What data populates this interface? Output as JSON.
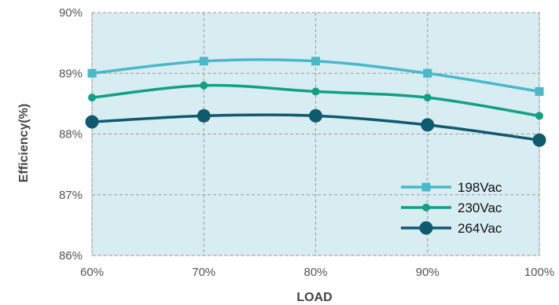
{
  "chart_data": {
    "type": "line",
    "title": "",
    "xlabel": "LOAD",
    "ylabel": "Efficiency(%)",
    "categories": [
      "60%",
      "70%",
      "80%",
      "90%",
      "100%"
    ],
    "x": [
      60,
      70,
      80,
      90,
      100
    ],
    "y_ticks": [
      "86%",
      "87%",
      "88%",
      "89%",
      "90%"
    ],
    "ylim": [
      86,
      90
    ],
    "grid": true,
    "legend_position": "bottom-right",
    "background_color": "#d7edf2",
    "series": [
      {
        "name": "198Vac",
        "marker": "square",
        "color": "#4ab8c9",
        "values": [
          89.0,
          89.2,
          89.2,
          89.0,
          88.7
        ]
      },
      {
        "name": "230Vac",
        "marker": "small-circle",
        "color": "#12a085",
        "values": [
          88.6,
          88.8,
          88.7,
          88.6,
          88.3
        ]
      },
      {
        "name": "264Vac",
        "marker": "large-circle",
        "color": "#0f5a6e",
        "values": [
          88.2,
          88.3,
          88.3,
          88.15,
          87.9
        ]
      }
    ]
  }
}
